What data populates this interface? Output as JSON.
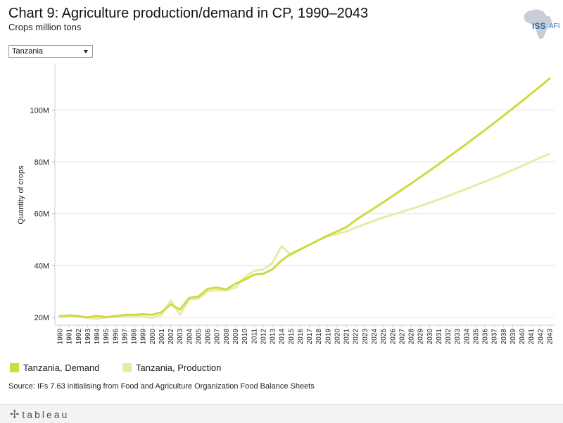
{
  "header": {
    "title": "Chart 9: Agriculture production/demand in CP, 1990–2043",
    "subtitle": "Crops million tons"
  },
  "logo": {
    "text": "ISS",
    "suffix": "AFI",
    "icon": "africa-map-icon",
    "color": "#2e6fb5"
  },
  "filter": {
    "selected": "Tanzania"
  },
  "legend": [
    {
      "label": "Tanzania, Demand",
      "color": "#cfd940"
    },
    {
      "label": "Tanzania, Production",
      "color": "#e6eca6"
    }
  ],
  "source": "Source: IFs 7.63 initialising from Food and Agriculture Organization Food Balance Sheets",
  "footer": {
    "brand": "tableau",
    "icon": "tableau-plus-icon"
  },
  "chart_data": {
    "type": "line",
    "title": "Chart 9: Agriculture production/demand in CP, 1990–2043",
    "subtitle": "Crops million tons",
    "xlabel": "",
    "ylabel": "Quantity of crops",
    "ylim": [
      17,
      118
    ],
    "yticks": [
      20,
      40,
      60,
      80,
      100
    ],
    "ytick_labels": [
      "20M",
      "40M",
      "60M",
      "80M",
      "100M"
    ],
    "grid": true,
    "legend_position": "bottom-left",
    "x": [
      1990,
      1991,
      1992,
      1993,
      1994,
      1995,
      1996,
      1997,
      1998,
      1999,
      2000,
      2001,
      2002,
      2003,
      2004,
      2005,
      2006,
      2007,
      2008,
      2009,
      2010,
      2011,
      2012,
      2013,
      2014,
      2015,
      2016,
      2017,
      2018,
      2019,
      2020,
      2021,
      2022,
      2023,
      2024,
      2025,
      2026,
      2027,
      2028,
      2029,
      2030,
      2031,
      2032,
      2033,
      2034,
      2035,
      2036,
      2037,
      2038,
      2039,
      2040,
      2041,
      2042,
      2043
    ],
    "series": [
      {
        "name": "Tanzania, Demand",
        "color": "#cfd940",
        "values": [
          20.5,
          20.7,
          20.5,
          20.0,
          20.6,
          20.1,
          20.3,
          21.0,
          21.0,
          21.2,
          21.0,
          22.0,
          25.0,
          23.0,
          27.5,
          28.0,
          31.0,
          31.5,
          30.8,
          33.0,
          34.5,
          36.5,
          36.8,
          38.5,
          42.0,
          44.5,
          46.2,
          48.0,
          49.8,
          51.6,
          53.2,
          54.8,
          57.5,
          59.8,
          62.1,
          64.4,
          66.8,
          69.2,
          71.6,
          74.1,
          76.6,
          79.1,
          81.7,
          84.3,
          86.9,
          89.6,
          92.3,
          95.0,
          97.8,
          100.6,
          103.4,
          106.3,
          109.2,
          112.2
        ]
      },
      {
        "name": "Tanzania, Production",
        "color": "#e6eca6",
        "values": [
          20.2,
          20.9,
          20.4,
          19.8,
          19.5,
          20.0,
          20.8,
          20.2,
          20.5,
          20.3,
          19.8,
          21.0,
          26.5,
          21.0,
          27.0,
          27.2,
          30.0,
          30.5,
          30.4,
          31.5,
          35.5,
          38.0,
          38.5,
          41.0,
          47.5,
          44.0,
          46.2,
          48.0,
          49.8,
          51.3,
          52.2,
          53.2,
          54.6,
          56.0,
          57.3,
          58.5,
          59.6,
          60.7,
          61.8,
          63.0,
          64.2,
          65.5,
          66.8,
          68.2,
          69.6,
          71.0,
          72.4,
          73.8,
          75.3,
          76.8,
          78.4,
          80.0,
          81.6,
          83.2
        ]
      }
    ]
  }
}
